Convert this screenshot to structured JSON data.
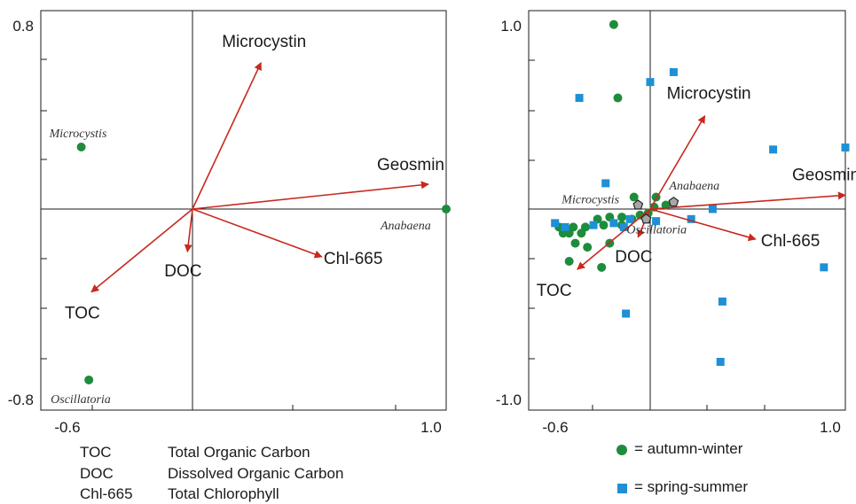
{
  "colors": {
    "vector": "#c8281e",
    "autumn_winter": "#1e8c3c",
    "spring_summer": "#1f8fd6",
    "centroid_fill": "#a6a6a6",
    "axis": "#1a1a1a"
  },
  "abbreviations": [
    {
      "code": "TOC",
      "meaning": "Total Organic Carbon"
    },
    {
      "code": "DOC",
      "meaning": "Dissolved Organic Carbon"
    },
    {
      "code": "Chl-665",
      "meaning": "Total Chlorophyll"
    }
  ],
  "legend": {
    "autumn_winter": "= autumn-winter",
    "spring_summer": "= spring-summer"
  },
  "chart_data": [
    {
      "type": "scatter",
      "panel": "left",
      "title": "",
      "xlim": [
        -0.6,
        1.0
      ],
      "ylim": [
        -0.8,
        0.8
      ],
      "x_tick_labels": [
        "-0.6",
        "1.0"
      ],
      "y_tick_labels": [
        "0.8",
        "-0.8"
      ],
      "vectors": [
        {
          "name": "Microcystin",
          "x": 0.27,
          "y": 0.59
        },
        {
          "name": "Geosmin",
          "x": 0.93,
          "y": 0.1
        },
        {
          "name": "Chl-665",
          "x": 0.51,
          "y": -0.19
        },
        {
          "name": "DOC",
          "x": -0.02,
          "y": -0.17
        },
        {
          "name": "TOC",
          "x": -0.4,
          "y": -0.33
        }
      ],
      "species": [
        {
          "name": "Microcystis",
          "x": -0.44,
          "y": 0.25
        },
        {
          "name": "Anabaena",
          "x": 1.0,
          "y": 0.0
        },
        {
          "name": "Oscillatoria",
          "x": -0.41,
          "y": -0.68
        }
      ]
    },
    {
      "type": "scatter",
      "panel": "right",
      "title": "",
      "xlim": [
        -0.6,
        1.0
      ],
      "ylim": [
        -1.0,
        1.0
      ],
      "x_tick_labels": [
        "-0.6",
        "1.0"
      ],
      "y_tick_labels": [
        "1.0",
        "-1.0"
      ],
      "vectors": [
        {
          "name": "Microcystin",
          "x": 0.28,
          "y": 0.47
        },
        {
          "name": "Geosmin",
          "x": 1.0,
          "y": 0.07
        },
        {
          "name": "Chl-665",
          "x": 0.54,
          "y": -0.15
        },
        {
          "name": "DOC",
          "x": -0.06,
          "y": -0.14
        },
        {
          "name": "TOC",
          "x": -0.36,
          "y": -0.3
        }
      ],
      "species": [
        {
          "name": "Microcystis",
          "x": -0.06,
          "y": 0.02
        },
        {
          "name": "Anabaena",
          "x": 0.12,
          "y": 0.035
        },
        {
          "name": "Oscillatoria",
          "x": -0.02,
          "y": -0.05
        }
      ],
      "series": [
        {
          "name": "autumn-winter",
          "points": [
            [
              -0.18,
              0.93
            ],
            [
              -0.16,
              0.56
            ],
            [
              -0.08,
              0.06
            ],
            [
              0.03,
              0.06
            ],
            [
              0.08,
              0.02
            ],
            [
              -0.01,
              -0.02
            ],
            [
              0.02,
              0.01
            ],
            [
              -0.05,
              -0.03
            ],
            [
              -0.14,
              -0.04
            ],
            [
              -0.2,
              -0.04
            ],
            [
              -0.26,
              -0.05
            ],
            [
              -0.23,
              -0.08
            ],
            [
              -0.32,
              -0.09
            ],
            [
              -0.38,
              -0.09
            ],
            [
              -0.45,
              -0.09
            ],
            [
              -0.4,
              -0.12
            ],
            [
              -0.34,
              -0.12
            ],
            [
              -0.14,
              -0.08
            ],
            [
              -0.37,
              -0.17
            ],
            [
              -0.31,
              -0.19
            ],
            [
              -0.2,
              -0.17
            ],
            [
              -0.4,
              -0.26
            ],
            [
              -0.24,
              -0.29
            ],
            [
              -0.43,
              -0.12
            ],
            [
              -0.09,
              -0.05
            ]
          ]
        },
        {
          "name": "spring-summer",
          "points": [
            [
              -0.35,
              0.56
            ],
            [
              0.0,
              0.64
            ],
            [
              0.12,
              0.69
            ],
            [
              0.63,
              0.3
            ],
            [
              1.0,
              0.31
            ],
            [
              -0.22,
              0.13
            ],
            [
              0.32,
              0.0
            ],
            [
              0.21,
              -0.05
            ],
            [
              0.03,
              -0.06
            ],
            [
              -0.1,
              -0.05
            ],
            [
              -0.13,
              -0.09
            ],
            [
              -0.28,
              -0.08
            ],
            [
              -0.47,
              -0.07
            ],
            [
              -0.42,
              -0.09
            ],
            [
              0.89,
              -0.29
            ],
            [
              0.37,
              -0.46
            ],
            [
              -0.12,
              -0.52
            ],
            [
              0.36,
              -0.76
            ],
            [
              -0.18,
              -0.07
            ]
          ]
        }
      ]
    }
  ]
}
